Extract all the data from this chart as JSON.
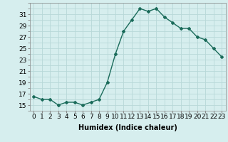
{
  "x": [
    0,
    1,
    2,
    3,
    4,
    5,
    6,
    7,
    8,
    9,
    10,
    11,
    12,
    13,
    14,
    15,
    16,
    17,
    18,
    19,
    20,
    21,
    22,
    23
  ],
  "y": [
    16.5,
    16.0,
    16.0,
    15.0,
    15.5,
    15.5,
    15.0,
    15.5,
    16.0,
    19.0,
    24.0,
    28.0,
    30.0,
    32.0,
    31.5,
    32.0,
    30.5,
    29.5,
    28.5,
    28.5,
    27.0,
    26.5,
    25.0,
    23.5
  ],
  "line_color": "#1a6b5a",
  "marker": "D",
  "marker_size": 2,
  "bg_color": "#d6eeee",
  "grid_color": "#b8d8d8",
  "title": "",
  "xlabel": "Humidex (Indice chaleur)",
  "ylabel": "",
  "xlim": [
    -0.5,
    23.5
  ],
  "ylim": [
    14,
    33
  ],
  "yticks": [
    15,
    17,
    19,
    21,
    23,
    25,
    27,
    29,
    31
  ],
  "xticks": [
    0,
    1,
    2,
    3,
    4,
    5,
    6,
    7,
    8,
    9,
    10,
    11,
    12,
    13,
    14,
    15,
    16,
    17,
    18,
    19,
    20,
    21,
    22,
    23
  ],
  "xlabel_fontsize": 7,
  "tick_fontsize": 6.5,
  "line_width": 1.0
}
